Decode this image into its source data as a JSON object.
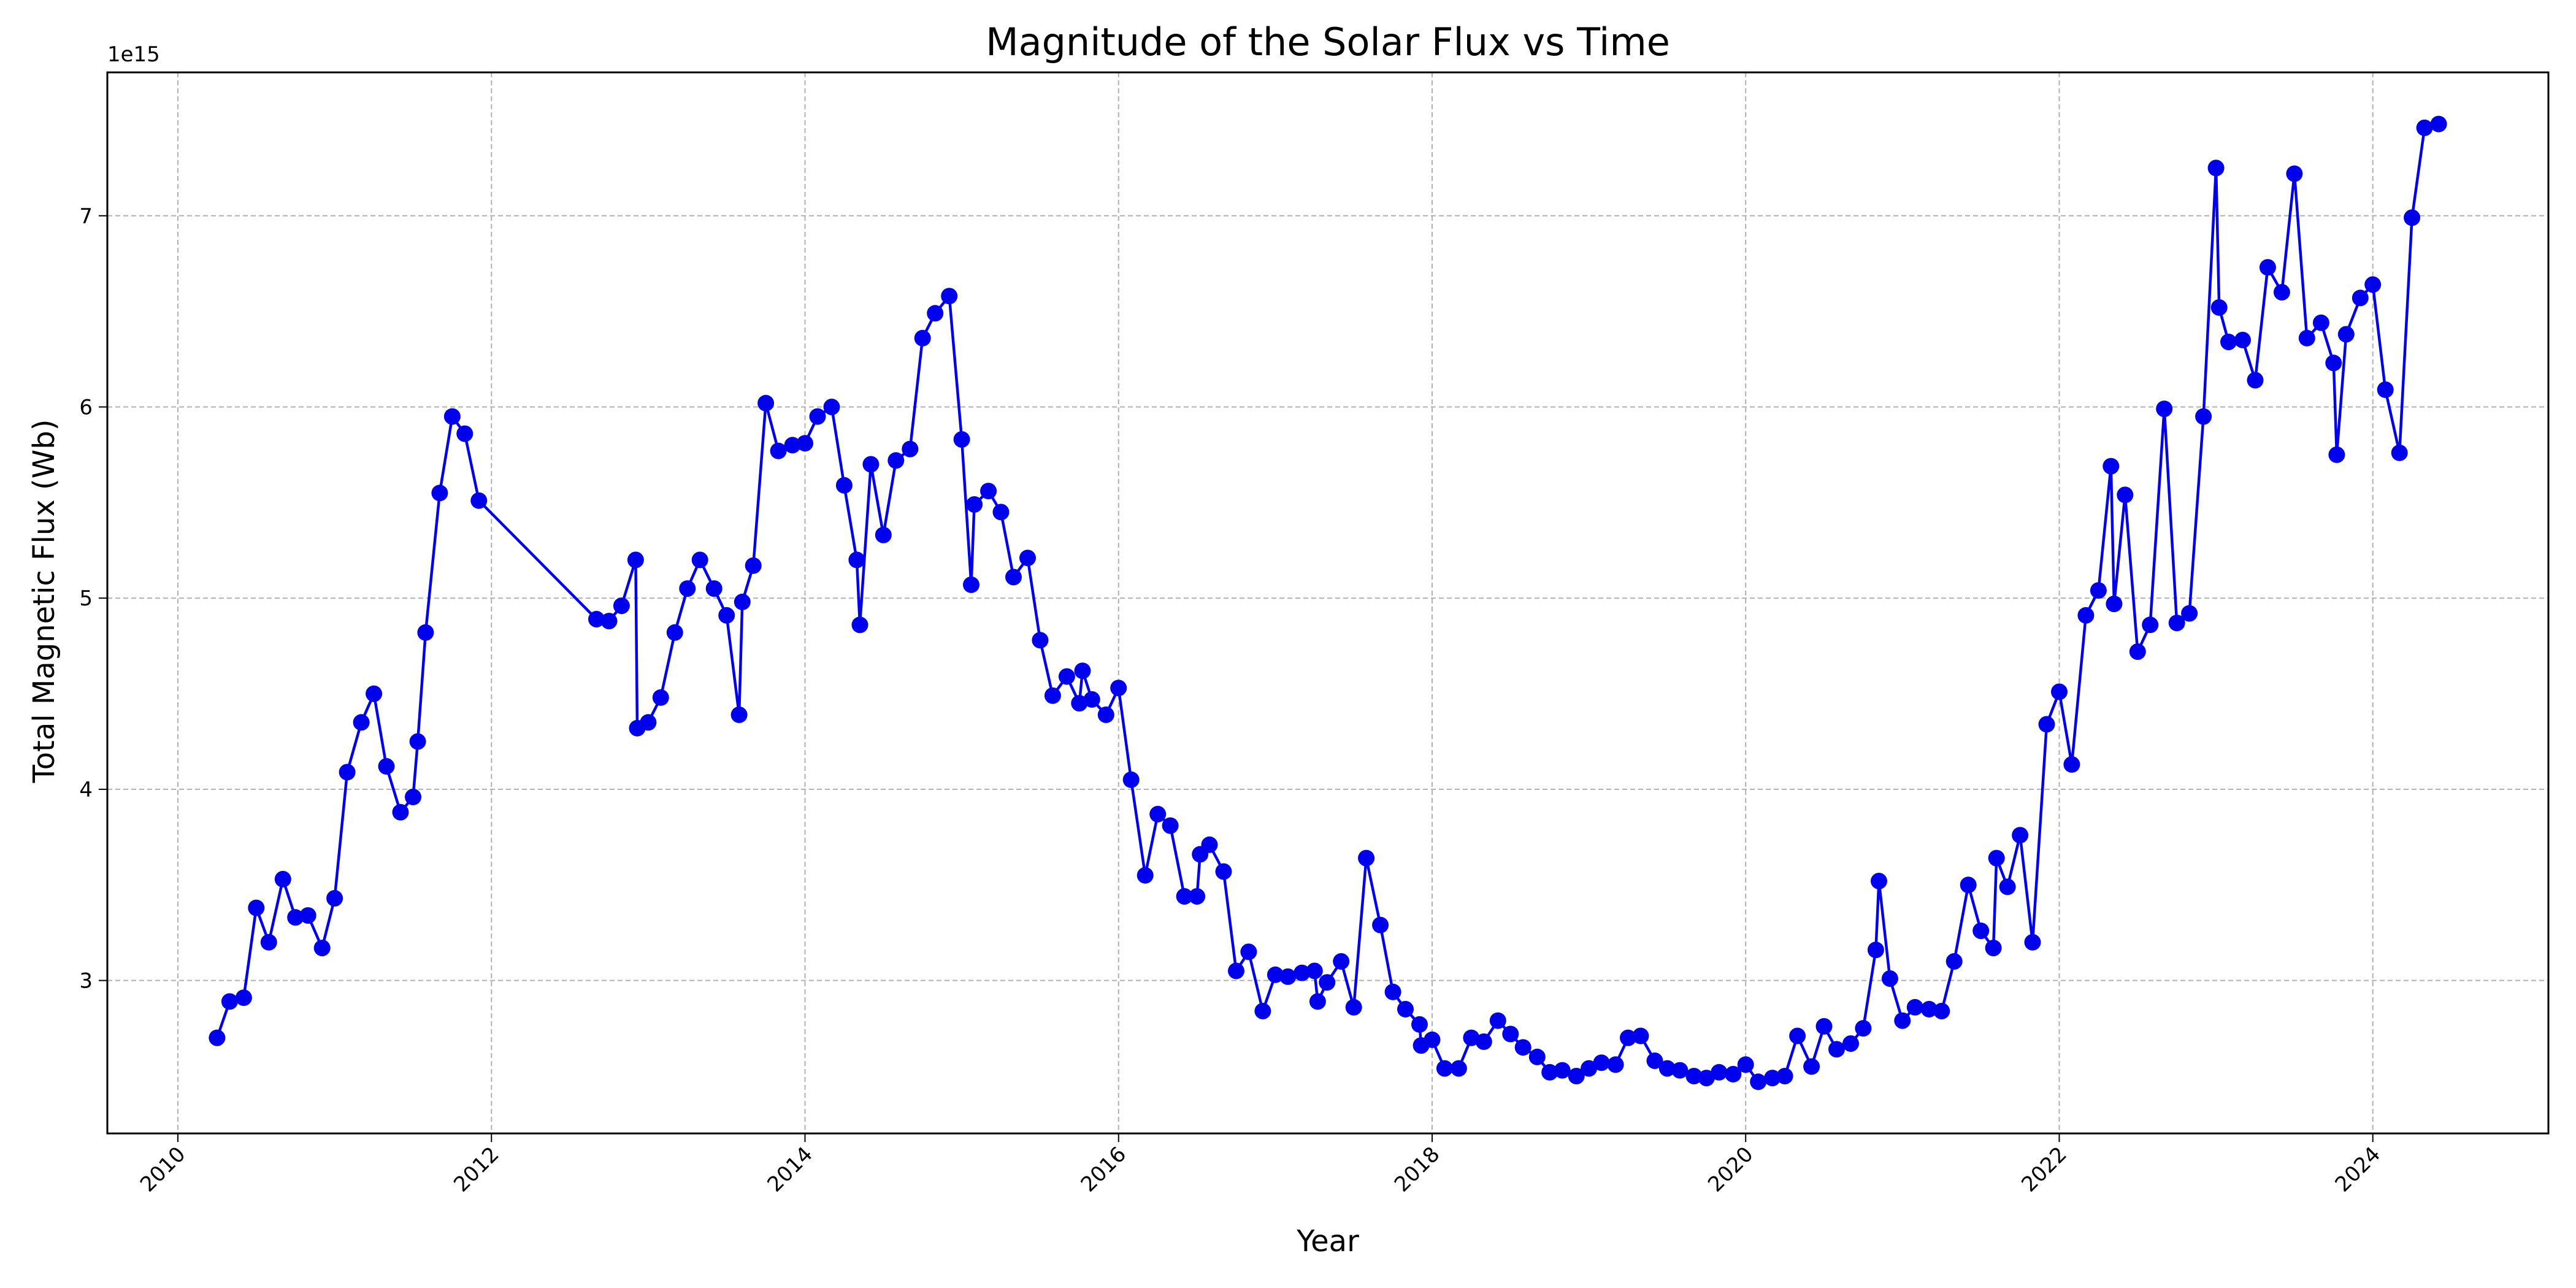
{
  "chart_data": {
    "type": "line",
    "title": "Magnitude of the Solar Flux vs Time",
    "xlabel": "Year",
    "ylabel": "Total Magnetic Flux (Wb)",
    "y_offset_label": "1e15",
    "xlim": [
      2009.55,
      2025.12
    ],
    "ylim": [
      2.2,
      7.75
    ],
    "x_ticks": [
      2010,
      2012,
      2014,
      2016,
      2018,
      2020,
      2022,
      2024
    ],
    "y_ticks": [
      3,
      4,
      5,
      6,
      7
    ],
    "grid": true,
    "line_color": "#0000ee",
    "marker": "circle",
    "series": [
      {
        "x": [
          2010.25,
          2010.33,
          2010.42,
          2010.5,
          2010.58,
          2010.67,
          2010.75,
          2010.83,
          2010.92,
          2011.0,
          2011.08,
          2011.17,
          2011.25,
          2011.33,
          2011.42,
          2011.5,
          2011.53,
          2011.58,
          2011.67,
          2011.75,
          2011.83,
          2011.92,
          2012.67,
          2012.75,
          2012.83,
          2012.92,
          2012.93,
          2013.0,
          2013.08,
          2013.17,
          2013.25,
          2013.33,
          2013.42,
          2013.5,
          2013.58,
          2013.6,
          2013.67,
          2013.75,
          2013.83,
          2013.92,
          2014.0,
          2014.08,
          2014.17,
          2014.25,
          2014.33,
          2014.35,
          2014.42,
          2014.5,
          2014.58,
          2014.67,
          2014.75,
          2014.83,
          2014.92,
          2015.0,
          2015.06,
          2015.08,
          2015.17,
          2015.25,
          2015.33,
          2015.42,
          2015.5,
          2015.58,
          2015.67,
          2015.75,
          2015.77,
          2015.83,
          2015.92,
          2016.0,
          2016.08,
          2016.17,
          2016.25,
          2016.33,
          2016.42,
          2016.5,
          2016.52,
          2016.58,
          2016.67,
          2016.75,
          2016.83,
          2016.92,
          2017.0,
          2017.08,
          2017.17,
          2017.25,
          2017.27,
          2017.33,
          2017.42,
          2017.5,
          2017.58,
          2017.67,
          2017.75,
          2017.83,
          2017.92,
          2017.93,
          2018.0,
          2018.08,
          2018.17,
          2018.25,
          2018.33,
          2018.42,
          2018.5,
          2018.58,
          2018.67,
          2018.75,
          2018.83,
          2018.92,
          2019.0,
          2019.08,
          2019.17,
          2019.25,
          2019.33,
          2019.42,
          2019.5,
          2019.58,
          2019.67,
          2019.75,
          2019.83,
          2019.92,
          2020.0,
          2020.08,
          2020.17,
          2020.25,
          2020.33,
          2020.42,
          2020.5,
          2020.58,
          2020.67,
          2020.75,
          2020.83,
          2020.85,
          2020.92,
          2021.0,
          2021.08,
          2021.17,
          2021.25,
          2021.33,
          2021.42,
          2021.5,
          2021.58,
          2021.6,
          2021.67,
          2021.75,
          2021.83,
          2021.92,
          2022.0,
          2022.08,
          2022.17,
          2022.25,
          2022.33,
          2022.35,
          2022.42,
          2022.5,
          2022.58,
          2022.67,
          2022.75,
          2022.83,
          2022.92,
          2023.0,
          2023.02,
          2023.08,
          2023.17,
          2023.25,
          2023.33,
          2023.42,
          2023.5,
          2023.58,
          2023.67,
          2023.75,
          2023.77,
          2023.83,
          2023.92,
          2024.0,
          2024.08,
          2024.17,
          2024.25,
          2024.33,
          2024.42
        ],
        "values": [
          2.7,
          2.89,
          2.91,
          3.38,
          3.2,
          3.53,
          3.33,
          3.34,
          3.17,
          3.43,
          4.09,
          4.35,
          4.5,
          4.12,
          3.88,
          3.96,
          4.25,
          4.82,
          5.55,
          5.95,
          5.86,
          5.51,
          4.89,
          4.88,
          4.96,
          5.2,
          4.32,
          4.35,
          4.48,
          4.82,
          5.05,
          5.2,
          5.05,
          4.91,
          4.39,
          4.98,
          5.17,
          6.02,
          5.77,
          5.8,
          5.81,
          5.95,
          6.0,
          5.59,
          5.2,
          4.86,
          5.7,
          5.33,
          5.72,
          5.78,
          6.36,
          6.49,
          6.58,
          5.83,
          5.07,
          5.49,
          5.56,
          5.45,
          5.11,
          5.21,
          4.78,
          4.49,
          4.59,
          4.45,
          4.62,
          4.47,
          4.39,
          4.53,
          4.05,
          3.55,
          3.87,
          3.81,
          3.44,
          3.44,
          3.66,
          3.71,
          3.57,
          3.05,
          3.15,
          2.84,
          3.03,
          3.02,
          3.04,
          3.05,
          2.89,
          2.99,
          3.1,
          2.86,
          3.64,
          3.29,
          2.94,
          2.85,
          2.77,
          2.66,
          2.69,
          2.54,
          2.54,
          2.7,
          2.68,
          2.79,
          2.72,
          2.65,
          2.6,
          2.52,
          2.53,
          2.5,
          2.54,
          2.57,
          2.56,
          2.7,
          2.71,
          2.58,
          2.54,
          2.53,
          2.5,
          2.49,
          2.52,
          2.51,
          2.56,
          2.47,
          2.49,
          2.5,
          2.71,
          2.55,
          2.76,
          2.64,
          2.67,
          2.75,
          3.16,
          3.52,
          3.01,
          2.79,
          2.86,
          2.85,
          2.84,
          3.1,
          3.5,
          3.26,
          3.17,
          3.64,
          3.49,
          3.76,
          3.2,
          4.34,
          4.51,
          4.13,
          4.91,
          5.04,
          5.69,
          4.97,
          5.54,
          4.72,
          4.86,
          5.99,
          4.87,
          4.92,
          5.95,
          7.25,
          6.52,
          6.34,
          6.35,
          6.14,
          6.73,
          6.6,
          7.22,
          6.36,
          6.44,
          6.23,
          5.75,
          6.38,
          6.57,
          6.64,
          6.09,
          5.76,
          6.99,
          7.46,
          7.48
        ]
      }
    ]
  }
}
